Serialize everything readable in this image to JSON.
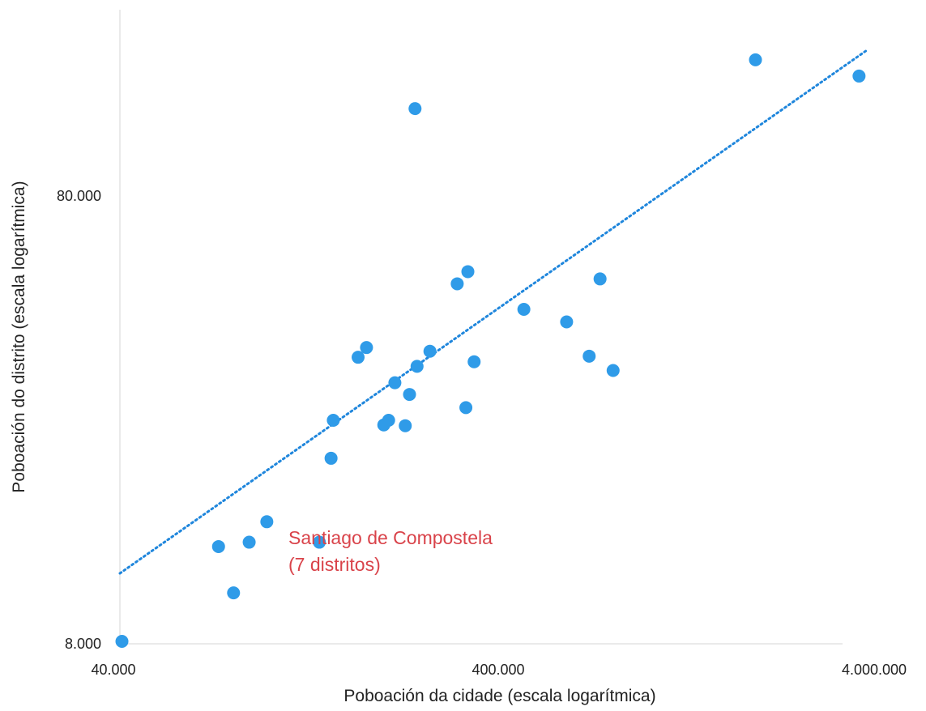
{
  "chart_data": {
    "type": "scatter",
    "title": "",
    "xlabel": "Poboación da cidade (escala logarítmica)",
    "ylabel": "Poboación do distrito (escala logarítmica)",
    "x_scale": "log",
    "y_scale": "log",
    "xlim": [
      40000,
      4000000
    ],
    "ylim": [
      8000,
      180000
    ],
    "x_ticks": [
      {
        "value": 40000,
        "label": "40.000"
      },
      {
        "value": 400000,
        "label": "400.000"
      },
      {
        "value": 4000000,
        "label": "4.000.000"
      }
    ],
    "y_ticks": [
      {
        "value": 8000,
        "label": "8.000"
      },
      {
        "value": 80000,
        "label": "80.000"
      }
    ],
    "grid": false,
    "legend": "none",
    "colors": {
      "points": "#2f9be8",
      "trendline": "#1f86dc",
      "annotation": "#d9434a",
      "axis_line": "#d8d8d8"
    },
    "points": [
      {
        "x": 40500,
        "y": 8100
      },
      {
        "x": 73000,
        "y": 13200
      },
      {
        "x": 80000,
        "y": 10400
      },
      {
        "x": 88000,
        "y": 13500
      },
      {
        "x": 98000,
        "y": 15000
      },
      {
        "x": 135000,
        "y": 13500
      },
      {
        "x": 145000,
        "y": 20800
      },
      {
        "x": 147000,
        "y": 25300
      },
      {
        "x": 171000,
        "y": 35000
      },
      {
        "x": 180000,
        "y": 36800
      },
      {
        "x": 200000,
        "y": 24700
      },
      {
        "x": 206000,
        "y": 25300
      },
      {
        "x": 214000,
        "y": 30700
      },
      {
        "x": 228000,
        "y": 24600
      },
      {
        "x": 234000,
        "y": 28900
      },
      {
        "x": 242000,
        "y": 126000
      },
      {
        "x": 245000,
        "y": 33400
      },
      {
        "x": 265000,
        "y": 36100
      },
      {
        "x": 313000,
        "y": 51100
      },
      {
        "x": 334000,
        "y": 54400
      },
      {
        "x": 330000,
        "y": 27000
      },
      {
        "x": 347000,
        "y": 34200
      },
      {
        "x": 470000,
        "y": 44800
      },
      {
        "x": 610000,
        "y": 42000
      },
      {
        "x": 700000,
        "y": 35200
      },
      {
        "x": 748000,
        "y": 52400
      },
      {
        "x": 810000,
        "y": 32700
      },
      {
        "x": 1930000,
        "y": 162000
      },
      {
        "x": 3630000,
        "y": 149000
      }
    ],
    "series": [
      {
        "type": "trendline",
        "style": "dotted",
        "x": [
          40000,
          3800000
        ],
        "y": [
          11500,
          170000
        ]
      }
    ],
    "annotations": [
      {
        "lines": [
          "Santiago de Compostela",
          "(7 distritos)"
        ]
      }
    ]
  }
}
